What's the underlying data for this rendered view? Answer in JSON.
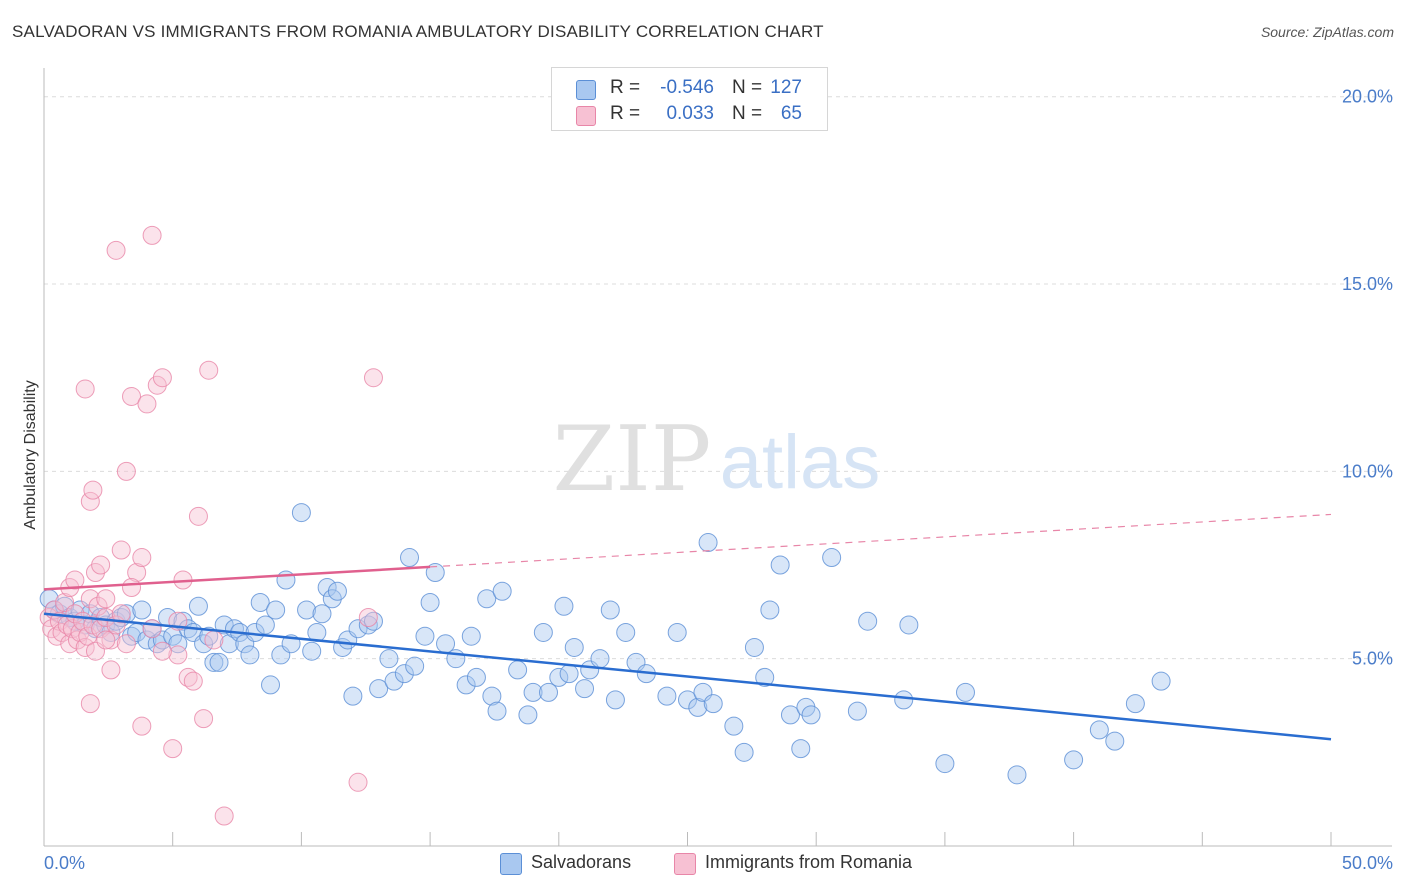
{
  "title": "SALVADORAN VS IMMIGRANTS FROM ROMANIA AMBULATORY DISABILITY CORRELATION CHART",
  "source": "Source: ZipAtlas.com",
  "watermark": {
    "zip": "ZIP",
    "atlas": "atlas"
  },
  "legend": {
    "rows": [
      {
        "r_label": "R =",
        "r_value": "-0.546",
        "n_label": "N =",
        "n_value": "127",
        "color": "#a9c8f0",
        "border": "#5b8fd6"
      },
      {
        "r_label": "R =",
        "r_value": "0.033",
        "n_label": "N =",
        "n_value": "65",
        "color": "#f7c1d3",
        "border": "#e886a8"
      }
    ]
  },
  "bottom_legend": {
    "salvadorans": "Salvadorans",
    "romania": "Immigrants from Romania"
  },
  "chart_data": {
    "type": "scatter",
    "title": "SALVADORAN VS IMMIGRANTS FROM ROMANIA AMBULATORY DISABILITY CORRELATION CHART",
    "ylabel": "Ambulatory Disability",
    "xlabel": "",
    "xlim": [
      0,
      50
    ],
    "ylim": [
      0,
      20.5
    ],
    "x_tick_labels": [
      "0.0%",
      "50.0%"
    ],
    "y_ticks": [
      5,
      10,
      15,
      20
    ],
    "y_tick_labels": [
      "5.0%",
      "10.0%",
      "15.0%",
      "20.0%"
    ],
    "grid": true,
    "series": [
      {
        "name": "Salvadorans",
        "color": "#5b8fd6",
        "fill": "rgba(169,200,240,0.45)",
        "trend": {
          "x0": 0,
          "y0": 6.2,
          "x1": 50,
          "y1": 2.85
        },
        "points": [
          [
            0.2,
            6.6
          ],
          [
            0.4,
            6.3
          ],
          [
            0.6,
            6.2
          ],
          [
            0.8,
            6.4
          ],
          [
            1.0,
            6.1
          ],
          [
            1.2,
            6.0
          ],
          [
            1.4,
            6.3
          ],
          [
            1.6,
            5.9
          ],
          [
            1.8,
            6.2
          ],
          [
            2.0,
            5.8
          ],
          [
            2.2,
            6.1
          ],
          [
            2.4,
            5.9
          ],
          [
            2.6,
            5.7
          ],
          [
            2.8,
            6.0
          ],
          [
            3.0,
            6.1
          ],
          [
            3.2,
            6.2
          ],
          [
            3.4,
            5.6
          ],
          [
            3.6,
            5.7
          ],
          [
            3.8,
            6.3
          ],
          [
            4.0,
            5.5
          ],
          [
            4.2,
            5.8
          ],
          [
            4.4,
            5.4
          ],
          [
            4.6,
            5.5
          ],
          [
            4.8,
            6.1
          ],
          [
            5.0,
            5.6
          ],
          [
            5.2,
            5.4
          ],
          [
            5.4,
            6.0
          ],
          [
            5.6,
            5.8
          ],
          [
            5.8,
            5.7
          ],
          [
            6.0,
            6.4
          ],
          [
            6.2,
            5.4
          ],
          [
            6.4,
            5.6
          ],
          [
            6.6,
            4.9
          ],
          [
            6.8,
            4.9
          ],
          [
            7.0,
            5.9
          ],
          [
            7.2,
            5.4
          ],
          [
            7.4,
            5.8
          ],
          [
            7.6,
            5.7
          ],
          [
            7.8,
            5.4
          ],
          [
            8.0,
            5.1
          ],
          [
            8.2,
            5.7
          ],
          [
            8.4,
            6.5
          ],
          [
            8.6,
            5.9
          ],
          [
            8.8,
            4.3
          ],
          [
            9.0,
            6.3
          ],
          [
            9.2,
            5.1
          ],
          [
            9.4,
            7.1
          ],
          [
            9.6,
            5.4
          ],
          [
            10.0,
            8.9
          ],
          [
            10.2,
            6.3
          ],
          [
            10.4,
            5.2
          ],
          [
            10.6,
            5.7
          ],
          [
            10.8,
            6.2
          ],
          [
            11.0,
            6.9
          ],
          [
            11.2,
            6.6
          ],
          [
            11.4,
            6.8
          ],
          [
            11.6,
            5.3
          ],
          [
            11.8,
            5.5
          ],
          [
            12.0,
            4.0
          ],
          [
            12.2,
            5.8
          ],
          [
            12.6,
            5.9
          ],
          [
            12.8,
            6.0
          ],
          [
            13.0,
            4.2
          ],
          [
            13.4,
            5.0
          ],
          [
            13.6,
            4.4
          ],
          [
            14.0,
            4.6
          ],
          [
            14.2,
            7.7
          ],
          [
            14.4,
            4.8
          ],
          [
            14.8,
            5.6
          ],
          [
            15.0,
            6.5
          ],
          [
            15.2,
            7.3
          ],
          [
            15.6,
            5.4
          ],
          [
            16.0,
            5.0
          ],
          [
            16.4,
            4.3
          ],
          [
            16.6,
            5.6
          ],
          [
            16.8,
            4.5
          ],
          [
            17.2,
            6.6
          ],
          [
            17.4,
            4.0
          ],
          [
            17.6,
            3.6
          ],
          [
            17.8,
            6.8
          ],
          [
            18.4,
            4.7
          ],
          [
            18.8,
            3.5
          ],
          [
            19.0,
            4.1
          ],
          [
            19.4,
            5.7
          ],
          [
            19.6,
            4.1
          ],
          [
            20.0,
            4.5
          ],
          [
            20.2,
            6.4
          ],
          [
            20.4,
            4.6
          ],
          [
            20.6,
            5.3
          ],
          [
            21.0,
            4.2
          ],
          [
            21.2,
            4.7
          ],
          [
            21.6,
            5.0
          ],
          [
            22.0,
            6.3
          ],
          [
            22.2,
            3.9
          ],
          [
            22.6,
            5.7
          ],
          [
            23.0,
            4.9
          ],
          [
            23.4,
            4.6
          ],
          [
            24.2,
            4.0
          ],
          [
            24.6,
            5.7
          ],
          [
            25.0,
            3.9
          ],
          [
            25.4,
            3.7
          ],
          [
            25.6,
            4.1
          ],
          [
            25.8,
            8.1
          ],
          [
            26.0,
            3.8
          ],
          [
            26.8,
            3.2
          ],
          [
            27.2,
            2.5
          ],
          [
            27.6,
            5.3
          ],
          [
            28.0,
            4.5
          ],
          [
            28.2,
            6.3
          ],
          [
            28.6,
            7.5
          ],
          [
            29.0,
            3.5
          ],
          [
            29.4,
            2.6
          ],
          [
            29.6,
            3.7
          ],
          [
            29.8,
            3.5
          ],
          [
            30.6,
            7.7
          ],
          [
            31.6,
            3.6
          ],
          [
            32.0,
            6.0
          ],
          [
            33.4,
            3.9
          ],
          [
            33.6,
            5.9
          ],
          [
            35.0,
            2.2
          ],
          [
            35.8,
            4.1
          ],
          [
            37.8,
            1.9
          ],
          [
            40.0,
            2.3
          ],
          [
            41.0,
            3.1
          ],
          [
            41.6,
            2.8
          ],
          [
            42.4,
            3.8
          ],
          [
            43.4,
            4.4
          ]
        ]
      },
      {
        "name": "Immigrants from Romania",
        "color": "#e886a8",
        "fill": "rgba(247,193,211,0.45)",
        "trend": {
          "x0": 0,
          "y0": 6.85,
          "x1": 15,
          "y1": 7.45,
          "x_ext": 50,
          "y_ext": 8.85
        },
        "points": [
          [
            0.2,
            6.1
          ],
          [
            0.3,
            5.8
          ],
          [
            0.4,
            6.3
          ],
          [
            0.5,
            5.6
          ],
          [
            0.6,
            6.0
          ],
          [
            0.7,
            5.7
          ],
          [
            0.8,
            6.5
          ],
          [
            0.9,
            5.9
          ],
          [
            1.0,
            5.4
          ],
          [
            1.1,
            5.8
          ],
          [
            1.2,
            6.2
          ],
          [
            1.3,
            5.5
          ],
          [
            1.4,
            5.7
          ],
          [
            1.5,
            6.0
          ],
          [
            1.6,
            5.3
          ],
          [
            1.7,
            5.6
          ],
          [
            1.8,
            6.6
          ],
          [
            1.9,
            5.9
          ],
          [
            2.0,
            5.2
          ],
          [
            2.1,
            6.4
          ],
          [
            2.2,
            5.8
          ],
          [
            2.4,
            6.1
          ],
          [
            2.6,
            5.5
          ],
          [
            2.8,
            5.9
          ],
          [
            3.0,
            6.2
          ],
          [
            3.2,
            5.4
          ],
          [
            1.0,
            6.9
          ],
          [
            1.2,
            7.1
          ],
          [
            1.6,
            12.2
          ],
          [
            1.8,
            9.2
          ],
          [
            1.9,
            9.5
          ],
          [
            2.0,
            7.3
          ],
          [
            2.2,
            7.5
          ],
          [
            2.4,
            6.6
          ],
          [
            2.6,
            4.7
          ],
          [
            2.8,
            15.9
          ],
          [
            3.0,
            7.9
          ],
          [
            3.2,
            10.0
          ],
          [
            3.4,
            12.0
          ],
          [
            3.6,
            7.3
          ],
          [
            3.8,
            7.7
          ],
          [
            4.0,
            11.8
          ],
          [
            4.2,
            16.3
          ],
          [
            4.4,
            12.3
          ],
          [
            4.6,
            12.5
          ],
          [
            5.0,
            2.6
          ],
          [
            5.2,
            6.0
          ],
          [
            5.4,
            7.1
          ],
          [
            5.6,
            4.5
          ],
          [
            5.8,
            4.4
          ],
          [
            6.0,
            8.8
          ],
          [
            6.2,
            3.4
          ],
          [
            6.4,
            12.7
          ],
          [
            6.6,
            5.5
          ],
          [
            3.8,
            3.2
          ],
          [
            1.8,
            3.8
          ],
          [
            4.2,
            5.8
          ],
          [
            3.4,
            6.9
          ],
          [
            7.0,
            0.8
          ],
          [
            12.2,
            1.7
          ],
          [
            12.6,
            6.1
          ],
          [
            12.8,
            12.5
          ],
          [
            5.2,
            5.1
          ],
          [
            4.6,
            5.2
          ],
          [
            2.4,
            5.5
          ]
        ]
      }
    ]
  }
}
